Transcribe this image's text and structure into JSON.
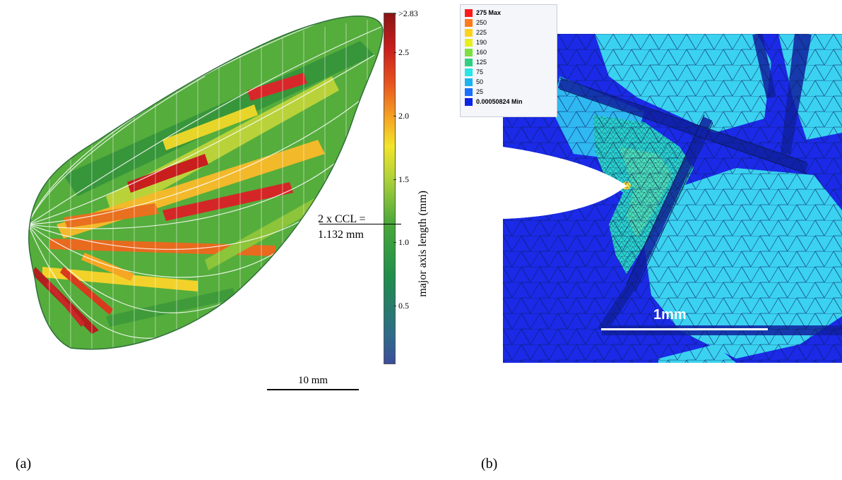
{
  "figure": {
    "panel_a": {
      "label": "(a)",
      "colorbar": {
        "label": "major axis length (mm)",
        "ticks": [
          ">2.83",
          "2.5",
          "2.0",
          "1.5",
          "1.0",
          "0.5"
        ]
      },
      "ccl_annotation": [
        "2 x CCL =",
        "1.132 mm"
      ],
      "scale_bar": "10 mm"
    },
    "panel_b": {
      "label": "(b)",
      "legend": [
        {
          "text": "275 Max",
          "color": "#ff1a1a"
        },
        {
          "text": "250",
          "color": "#ff7a1a"
        },
        {
          "text": "225",
          "color": "#ffd21a"
        },
        {
          "text": "190",
          "color": "#e6ee1e"
        },
        {
          "text": "160",
          "color": "#7ce040"
        },
        {
          "text": "125",
          "color": "#2fd080"
        },
        {
          "text": "75",
          "color": "#28e6e6"
        },
        {
          "text": "50",
          "color": "#1ab4f0"
        },
        {
          "text": "25",
          "color": "#1a70ff"
        },
        {
          "text": "0.00050824 Min",
          "color": "#0a24e6"
        }
      ],
      "scale_bar": "1mm"
    }
  }
}
